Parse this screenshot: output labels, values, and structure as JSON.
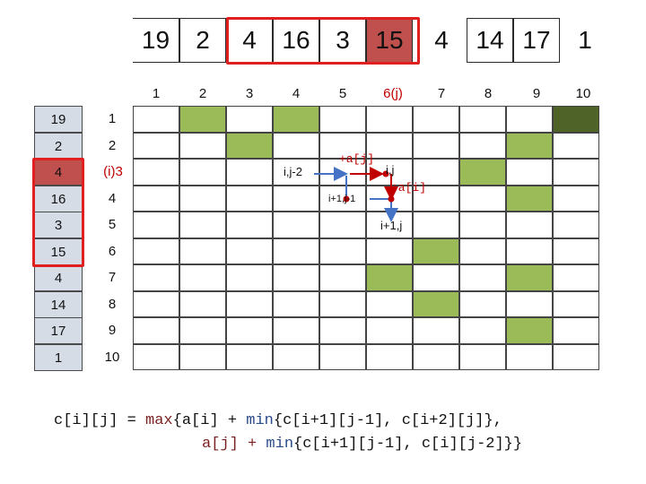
{
  "top_array": [
    "19",
    "2",
    "4",
    "16",
    "3",
    "15",
    "4",
    "14",
    "17",
    "1"
  ],
  "col_numbers": [
    "1",
    "2",
    "3",
    "4",
    "5",
    "6(j)",
    "7",
    "8",
    "9",
    "10"
  ],
  "left_array": [
    "19",
    "2",
    "4",
    "16",
    "3",
    "15",
    "4",
    "14",
    "17",
    "1"
  ],
  "row_numbers": [
    "1",
    "2",
    "(i)3",
    "4",
    "5",
    "6",
    "7",
    "8",
    "9",
    "10"
  ],
  "grid_shading": [
    [
      "",
      "g",
      "",
      "g",
      "",
      "",
      "",
      "",
      "",
      "d"
    ],
    [
      "",
      "",
      "g",
      "",
      "",
      "",
      "",
      "",
      "g",
      ""
    ],
    [
      "",
      "",
      "",
      "",
      "",
      "",
      "",
      "g",
      "",
      ""
    ],
    [
      "",
      "",
      "",
      "",
      "",
      "",
      "",
      "",
      "g",
      ""
    ],
    [
      "",
      "",
      "",
      "",
      "",
      "",
      "",
      "",
      "",
      ""
    ],
    [
      "",
      "",
      "",
      "",
      "",
      "",
      "g",
      "",
      "",
      ""
    ],
    [
      "",
      "",
      "",
      "",
      "",
      "g",
      "",
      "",
      "g",
      ""
    ],
    [
      "",
      "",
      "",
      "",
      "",
      "",
      "g",
      "",
      "",
      ""
    ],
    [
      "",
      "",
      "",
      "",
      "",
      "",
      "",
      "",
      "g",
      ""
    ],
    [
      "",
      "",
      "",
      "",
      "",
      "",
      "",
      "",
      "",
      ""
    ]
  ],
  "annotations": {
    "ij2": "i,j-2",
    "ij": "i,j",
    "i1j1": "i+1,j-1",
    "i1j": "i+1,j",
    "plus_aj": "+a[j]",
    "plus_ai": "+a[i]"
  },
  "colors": {
    "green": "#9bbb59",
    "dark_green": "#4f6228",
    "left_fill": "#d5dce6",
    "highlight_fill": "#c0504d",
    "highlight_border": "#e02020",
    "arrow_blue": "#4472c4",
    "arrow_red": "#c00000"
  },
  "formula": {
    "line1": {
      "p1": "c[i][j] = ",
      "max": "max",
      "p2": "{a[i] + ",
      "min": "min",
      "p3": "{c[i+1][j-1], c[i+2][j]},"
    },
    "line2": {
      "p1": "a[j] + ",
      "min": "min",
      "p2": "{c[i+1][j-1], c[i][j-2]}}"
    }
  }
}
